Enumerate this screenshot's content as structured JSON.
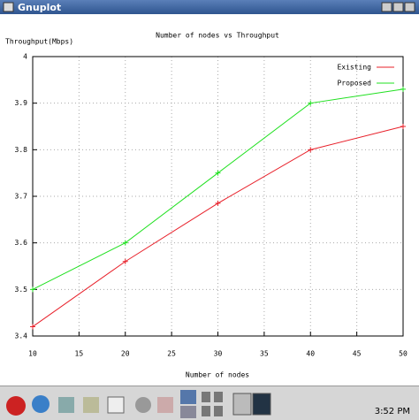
{
  "window_title": "Gnuplot",
  "clock": "3:52 PM",
  "chart_data": {
    "type": "line",
    "title": "Number of nodes vs Throughput",
    "x_label": "Number of nodes",
    "y_label": "Throughput(Mbps)",
    "x": [
      10,
      20,
      30,
      40,
      50
    ],
    "series": [
      {
        "name": "Existing",
        "color": "#e8202a",
        "values": [
          3.42,
          3.56,
          3.685,
          3.8,
          3.85
        ]
      },
      {
        "name": "Proposed",
        "color": "#20e020",
        "values": [
          3.5,
          3.6,
          3.75,
          3.9,
          3.93
        ]
      }
    ],
    "xlim": [
      10,
      50
    ],
    "xticks": [
      10,
      15,
      20,
      25,
      30,
      35,
      40,
      45,
      50
    ],
    "ylim": [
      3.4,
      4
    ],
    "yticks": [
      3.4,
      3.5,
      3.6,
      3.7,
      3.8,
      3.9,
      4
    ],
    "grid": true,
    "legend": "top-right"
  }
}
